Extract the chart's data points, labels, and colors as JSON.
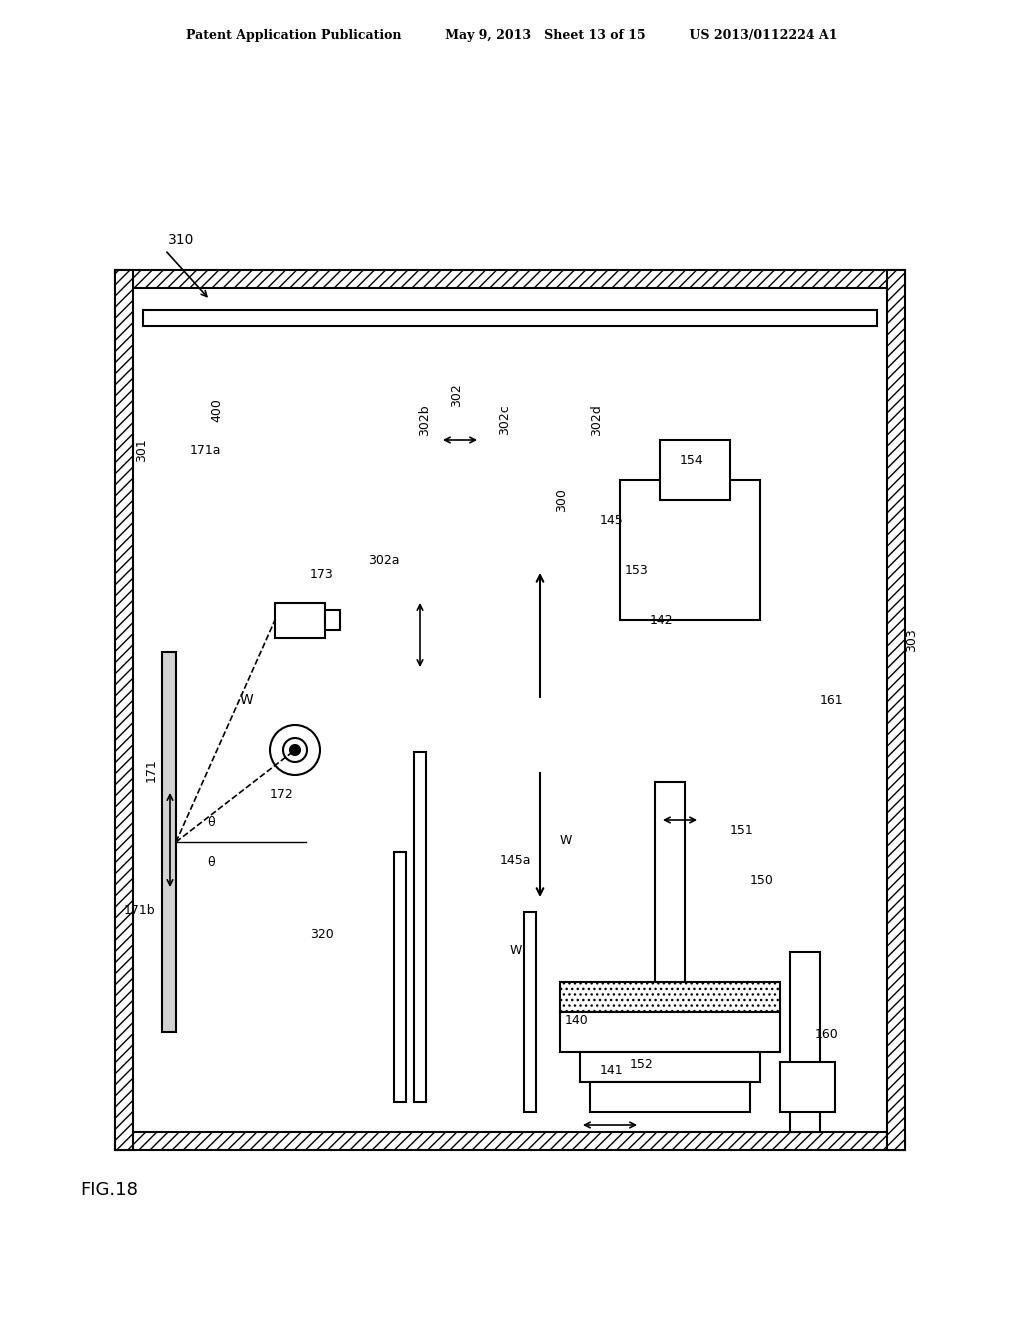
{
  "title_left": "Patent Application Publication",
  "title_mid": "May 9, 2013   Sheet 13 of 15",
  "title_right": "US 2013/0112224 A1",
  "fig_label": "FIG.18",
  "background": "#ffffff",
  "line_color": "#000000",
  "hatch_color": "#000000",
  "label_310": "310",
  "label_400": "400",
  "label_301": "301",
  "label_303": "303",
  "label_171": "171",
  "label_171a": "171a",
  "label_171b": "171b",
  "label_173": "173",
  "label_172": "172",
  "label_302": "302",
  "label_302a": "302a",
  "label_302b": "302b",
  "label_302c": "302c",
  "label_302d": "302d",
  "label_300": "300",
  "label_145": "145",
  "label_145a": "145a",
  "label_142": "142",
  "label_153": "153",
  "label_154": "154",
  "label_161": "161",
  "label_160": "160",
  "label_150": "150",
  "label_151": "151",
  "label_140": "140",
  "label_141": "141",
  "label_152": "152",
  "label_320": "320",
  "label_W1": "W",
  "label_W2": "W",
  "label_W3": "W",
  "label_theta1": "θ",
  "label_theta2": "θ"
}
